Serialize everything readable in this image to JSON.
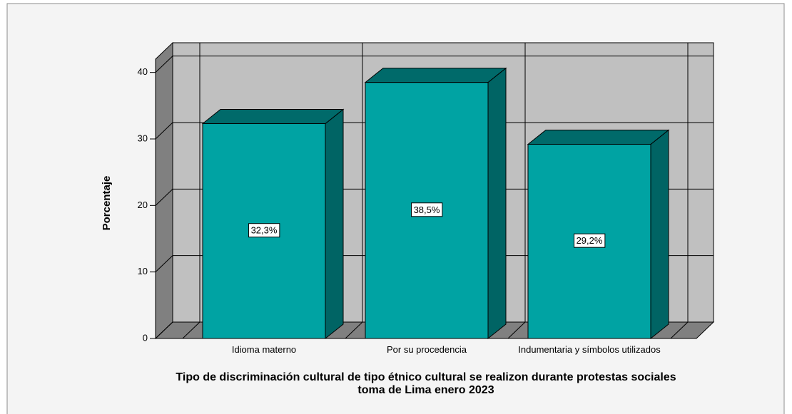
{
  "chart_data": {
    "type": "bar3d",
    "categories": [
      "Idioma materno",
      "Por su procedencia",
      "Indumentaria y símbolos utilizados"
    ],
    "values": [
      32.3,
      38.5,
      29.2
    ],
    "value_labels": [
      "32,3%",
      "38,5%",
      "29,2%"
    ],
    "y_label": "Porcentaje",
    "x_label": "Tipo de discriminación cultural de tipo étnico cultural se realizon durante protestas sociales toma de Lima enero 2023",
    "color": "#00a3a3",
    "ylim": [
      0,
      42
    ],
    "yticks": [
      0,
      10,
      20,
      30,
      40
    ],
    "grid": true
  }
}
